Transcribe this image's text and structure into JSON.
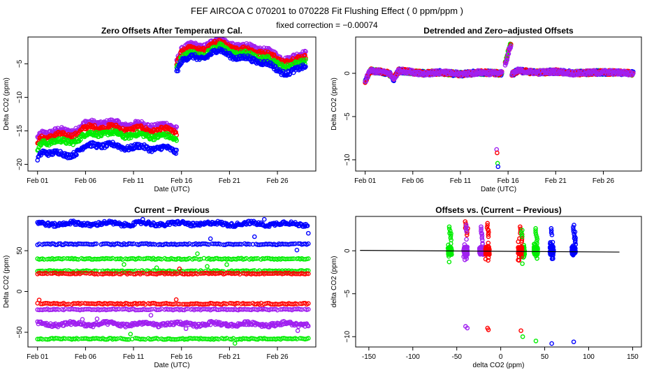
{
  "figure": {
    "title": "FEF   AIRCOA C   070201 to 070228   Fit Flushing Effect ( 0 ppm/ppm )",
    "subtitle": "fixed correction = −0.00074"
  },
  "colors": {
    "red": "#ff0000",
    "green": "#00ee00",
    "blue": "#0000ff",
    "purple": "#a020f0",
    "axis": "#000000"
  },
  "chart_data": [
    {
      "id": "zero-offsets",
      "type": "scatter",
      "title": "Zero Offsets After Temperature Cal.",
      "xlabel": "Date (UTC)",
      "ylabel": "Delta CO2 (ppm)",
      "xlim": [
        0,
        30
      ],
      "ylim": [
        -21,
        -1
      ],
      "xticks": [
        1,
        6,
        11,
        16,
        21,
        26
      ],
      "xticklabels": [
        "Feb 01",
        "Feb 06",
        "Feb 11",
        "Feb 16",
        "Feb 21",
        "Feb 26"
      ],
      "yticks": [
        -20,
        -15,
        -10,
        -5
      ],
      "series": [
        {
          "name": "purple",
          "color": "purple",
          "segments": [
            {
              "x": [
                1.0,
                1.5,
                3.0,
                4.0,
                5.0,
                6.0,
                7.0,
                8.5,
                10.0,
                12.0,
                14.0,
                15.5
              ],
              "y": [
                -16.2,
                -15.2,
                -15.0,
                -15.1,
                -14.7,
                -14.0,
                -13.7,
                -13.8,
                -14.0,
                -14.1,
                -14.2,
                -14.5
              ]
            },
            {
              "x": [
                15.5,
                16.0,
                17.0,
                18.0,
                19.0,
                20.0,
                21.0,
                22.0,
                23.0,
                24.0,
                25.0,
                26.0,
                27.0,
                28.0,
                29.0
              ],
              "y": [
                -4.3,
                -2.7,
                -2.3,
                -2.4,
                -1.8,
                -1.4,
                -1.8,
                -2.5,
                -2.4,
                -2.6,
                -3.2,
                -3.8,
                -4.2,
                -4.0,
                -3.2
              ]
            }
          ]
        },
        {
          "name": "red",
          "color": "red",
          "segments": [
            {
              "x": [
                1.0,
                1.5,
                3.0,
                4.0,
                5.0,
                6.0,
                7.0,
                8.5,
                10.0,
                12.0,
                14.0,
                15.5
              ],
              "y": [
                -16.8,
                -15.9,
                -15.7,
                -15.8,
                -15.4,
                -14.7,
                -14.4,
                -14.5,
                -14.7,
                -14.8,
                -14.9,
                -15.2
              ]
            },
            {
              "x": [
                15.5,
                16.0,
                17.0,
                18.0,
                19.0,
                20.0,
                21.0,
                22.0,
                23.0,
                24.0,
                25.0,
                26.0,
                27.0,
                28.0,
                29.0
              ],
              "y": [
                -4.8,
                -3.1,
                -2.8,
                -2.9,
                -2.3,
                -1.9,
                -2.3,
                -3.0,
                -2.9,
                -3.1,
                -3.7,
                -4.3,
                -4.6,
                -4.5,
                -3.8
              ]
            }
          ]
        },
        {
          "name": "green",
          "color": "green",
          "segments": [
            {
              "x": [
                1.0,
                1.5,
                3.0,
                4.0,
                5.0,
                6.0,
                7.0,
                8.5,
                10.0,
                12.0,
                14.0,
                15.5
              ],
              "y": [
                -17.8,
                -16.6,
                -16.6,
                -16.7,
                -16.4,
                -15.7,
                -15.3,
                -15.4,
                -15.6,
                -15.7,
                -15.8,
                -16.2
              ]
            },
            {
              "x": [
                15.5,
                16.0,
                17.0,
                18.0,
                19.0,
                20.0,
                21.0,
                22.0,
                23.0,
                24.0,
                25.0,
                26.0,
                27.0,
                28.0,
                29.0
              ],
              "y": [
                -5.4,
                -3.9,
                -3.6,
                -3.7,
                -3.0,
                -2.5,
                -2.9,
                -3.7,
                -3.6,
                -3.9,
                -4.4,
                -5.0,
                -5.3,
                -5.2,
                -4.5
              ]
            }
          ]
        },
        {
          "name": "blue",
          "color": "blue",
          "segments": [
            {
              "x": [
                1.0,
                1.5,
                3.0,
                4.0,
                5.0,
                6.0,
                7.0,
                8.5,
                10.0,
                12.0,
                14.0,
                15.5
              ],
              "y": [
                -19.4,
                -18.0,
                -18.3,
                -18.8,
                -18.1,
                -17.4,
                -17.0,
                -17.2,
                -17.4,
                -17.5,
                -17.6,
                -18.0
              ]
            },
            {
              "x": [
                15.5,
                16.0,
                17.0,
                18.0,
                19.0,
                20.0,
                21.0,
                22.0,
                23.0,
                24.0,
                25.0,
                26.0,
                27.0,
                28.0,
                29.0
              ],
              "y": [
                -5.9,
                -4.4,
                -4.1,
                -4.2,
                -3.5,
                -3.1,
                -3.5,
                -4.3,
                -4.2,
                -4.5,
                -5.1,
                -5.9,
                -6.3,
                -6.1,
                -5.2
              ]
            }
          ]
        }
      ]
    },
    {
      "id": "detrended",
      "type": "scatter",
      "title": "Detrended and Zero−adjusted Offsets",
      "xlabel": "Date (UTC)",
      "ylabel": "Delta CO2 (ppm)",
      "xlim": [
        0,
        30
      ],
      "ylim": [
        -11.3,
        4.2
      ],
      "xticks": [
        1,
        6,
        11,
        16,
        21,
        26
      ],
      "xticklabels": [
        "Feb 01",
        "Feb 06",
        "Feb 11",
        "Feb 16",
        "Feb 21",
        "Feb 26"
      ],
      "yticks": [
        -10,
        -5,
        0
      ],
      "series": [
        {
          "name": "baseline",
          "color": "purple",
          "x": [
            1.0,
            1.5,
            2.5,
            3.5,
            4.0,
            4.5,
            5.5,
            7.0,
            9.0,
            11.0,
            13.0,
            15.0,
            15.5,
            16.3,
            17.0,
            19.0,
            21.0,
            23.0,
            25.0,
            27.0,
            29.0
          ],
          "y": [
            -1.0,
            0.3,
            0.2,
            0.0,
            -0.7,
            0.3,
            0.2,
            0.0,
            0.1,
            -0.1,
            0.1,
            0.0,
            0.0,
            -0.2,
            0.3,
            0.1,
            0.2,
            0.0,
            0.1,
            0.1,
            0.0
          ]
        },
        {
          "name": "spike",
          "color": "purple",
          "x": [
            15.7,
            15.85,
            16.0,
            16.15,
            16.3
          ],
          "y": [
            1.2,
            1.8,
            2.5,
            3.1,
            3.5
          ]
        },
        {
          "name": "outliers",
          "colors": [
            "purple",
            "red",
            "green",
            "blue"
          ],
          "x": [
            14.8,
            14.85,
            14.9,
            14.95
          ],
          "y": [
            -8.8,
            -9.2,
            -10.4,
            -10.8
          ]
        }
      ]
    },
    {
      "id": "current-previous",
      "type": "scatter",
      "title": "Current − Previous",
      "xlabel": "Date (UTC)",
      "ylabel": "Delta CO2 (ppm)",
      "xlim": [
        0,
        30
      ],
      "ylim": [
        -68,
        92
      ],
      "xticks": [
        1,
        6,
        11,
        16,
        21,
        26
      ],
      "xticklabels": [
        "Feb 01",
        "Feb 06",
        "Feb 11",
        "Feb 16",
        "Feb 21",
        "Feb 26"
      ],
      "yticks": [
        -50,
        0,
        50
      ],
      "series": [
        {
          "name": "blue",
          "color": "blue",
          "levels": [
            83,
            58
          ]
        },
        {
          "name": "green",
          "color": "green",
          "levels": [
            40,
            25,
            -58
          ]
        },
        {
          "name": "red",
          "color": "red",
          "levels": [
            22,
            -15
          ]
        },
        {
          "name": "purple",
          "color": "purple",
          "levels": [
            -22,
            -40
          ]
        }
      ]
    },
    {
      "id": "offsets-vs",
      "type": "scatter",
      "title": "Offsets vs. (Current − Previous)",
      "xlabel": "delta CO2 (ppm)",
      "ylabel": "delta CO2 (ppm)",
      "xlim": [
        -165,
        160
      ],
      "ylim": [
        -11.2,
        4.0
      ],
      "xticks": [
        -150,
        -100,
        -50,
        0,
        50,
        100,
        150
      ],
      "yticks": [
        -10,
        -5,
        0
      ],
      "fit_line": {
        "x": [
          -160,
          135
        ],
        "y": [
          0.05,
          -0.15
        ]
      },
      "series": [
        {
          "name": "green",
          "color": "green",
          "clusters": [
            -58,
            25,
            40
          ]
        },
        {
          "name": "purple",
          "color": "purple",
          "clusters": [
            -40,
            -22
          ]
        },
        {
          "name": "red",
          "color": "red",
          "clusters": [
            -15,
            22
          ]
        },
        {
          "name": "blue",
          "color": "blue",
          "clusters": [
            58,
            83
          ]
        }
      ],
      "outliers": [
        {
          "color": "purple",
          "x": [
            -40,
            -38
          ],
          "y": [
            -8.8,
            -9.0
          ]
        },
        {
          "color": "red",
          "x": [
            -15,
            -14,
            23
          ],
          "y": [
            -9.0,
            -9.2,
            -9.3
          ]
        },
        {
          "color": "green",
          "x": [
            25,
            40
          ],
          "y": [
            -10.0,
            -10.5
          ]
        },
        {
          "color": "blue",
          "x": [
            58,
            83
          ],
          "y": [
            -10.8,
            -10.6
          ]
        }
      ],
      "upper_spikes": [
        {
          "color": "red",
          "x": [
            -40,
            -38,
            -15,
            -14,
            22,
            24
          ],
          "y": [
            3.4,
            2.6,
            3.2,
            2.4,
            2.8,
            1.9
          ]
        },
        {
          "color": "purple",
          "x": [
            -39,
            -22,
            -21
          ],
          "y": [
            3.0,
            2.8,
            2.0
          ]
        },
        {
          "color": "green",
          "x": [
            -58,
            -57,
            24,
            40,
            41
          ],
          "y": [
            2.8,
            2.0,
            2.4,
            2.6,
            1.6
          ]
        },
        {
          "color": "blue",
          "x": [
            58,
            83,
            84,
            85
          ],
          "y": [
            2.6,
            3.0,
            2.2,
            1.5
          ]
        }
      ]
    }
  ]
}
